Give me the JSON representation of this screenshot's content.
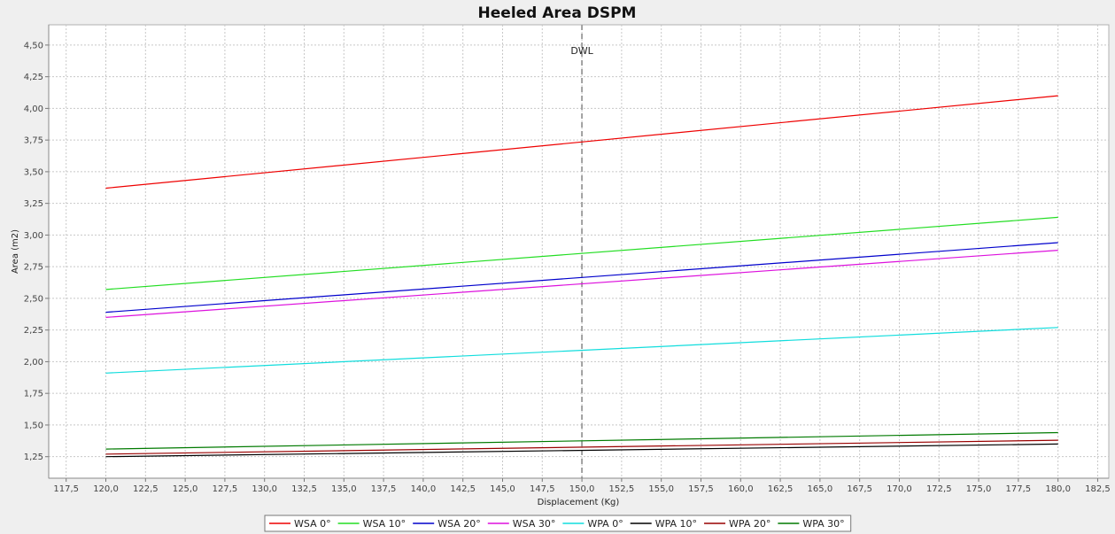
{
  "chart_data": {
    "type": "line",
    "title": "Heeled Area DSPM",
    "xlabel": "Displacement (Kg)",
    "ylabel": "Area (m2)",
    "xlim": [
      116.4,
      183.2
    ],
    "ylim": [
      1.08,
      4.66
    ],
    "x_ticks": [
      117.5,
      120.0,
      122.5,
      125.0,
      127.5,
      130.0,
      132.5,
      135.0,
      137.5,
      140.0,
      142.5,
      145.0,
      147.5,
      150.0,
      152.5,
      155.0,
      157.5,
      160.0,
      162.5,
      165.0,
      167.5,
      170.0,
      172.5,
      175.0,
      177.5,
      180.0,
      182.5
    ],
    "y_ticks": [
      1.25,
      1.5,
      1.75,
      2.0,
      2.25,
      2.5,
      2.75,
      3.0,
      3.25,
      3.5,
      3.75,
      4.0,
      4.25,
      4.5
    ],
    "decimal_separator": ",",
    "grid": true,
    "legend_position": "bottom",
    "annotations": [
      {
        "label": "DWL",
        "x": 150.0,
        "style": "vertical-dashed"
      }
    ],
    "x": [
      120.0,
      180.0
    ],
    "series": [
      {
        "name": "WSA 0°",
        "color": "#ee0000",
        "values": [
          3.37,
          4.1
        ]
      },
      {
        "name": "WSA 10°",
        "color": "#22dd22",
        "values": [
          2.57,
          3.14
        ]
      },
      {
        "name": "WSA 20°",
        "color": "#0000cc",
        "values": [
          2.39,
          2.94
        ]
      },
      {
        "name": "WSA 30°",
        "color": "#dd11dd",
        "values": [
          2.35,
          2.88
        ]
      },
      {
        "name": "WPA 0°",
        "color": "#11dddd",
        "values": [
          1.91,
          2.27
        ]
      },
      {
        "name": "WPA 10°",
        "color": "#000000",
        "values": [
          1.25,
          1.35
        ]
      },
      {
        "name": "WPA 20°",
        "color": "#990000",
        "values": [
          1.27,
          1.38
        ]
      },
      {
        "name": "WPA 30°",
        "color": "#007a00",
        "values": [
          1.31,
          1.44
        ]
      }
    ]
  }
}
